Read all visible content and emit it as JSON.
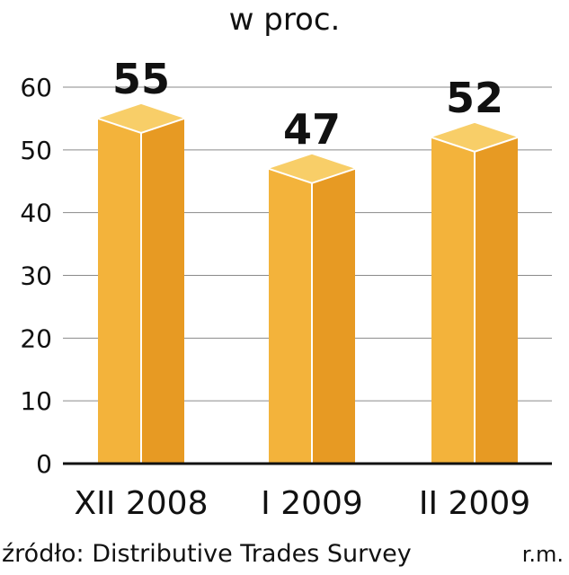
{
  "chart_data": {
    "type": "bar",
    "title": "w proc.",
    "categories": [
      "XII 2008",
      "I 2009",
      "II 2009"
    ],
    "values": [
      55,
      47,
      52
    ],
    "data_labels": [
      "55",
      "47",
      "52"
    ],
    "yticks": [
      "0",
      "10",
      "20",
      "30",
      "40",
      "50",
      "60"
    ],
    "ylim": [
      0,
      60
    ],
    "grid": true,
    "style": "3d-box",
    "bar_colors": {
      "front": "#F3B33B",
      "side": "#E79A23",
      "top": "#F8CE68",
      "edge": "#ffffff"
    }
  },
  "footer": {
    "source": "źródło: Distributive Trades Survey",
    "author": "r.m."
  }
}
